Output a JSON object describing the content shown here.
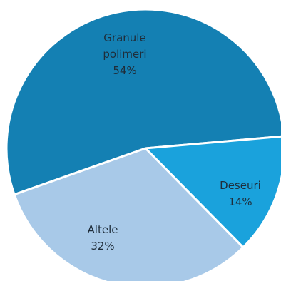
{
  "chart_data": {
    "type": "pie",
    "slices": [
      {
        "label": "Granule polimeri",
        "label_lines": [
          "Granule",
          "polimeri"
        ],
        "value": 54,
        "value_label": "54%",
        "color": "#1480b3"
      },
      {
        "label": "Deseuri",
        "label_lines": [
          "Deseuri"
        ],
        "value": 14,
        "value_label": "14%",
        "color": "#1aa2dc"
      },
      {
        "label": "Altele",
        "label_lines": [
          "Altele"
        ],
        "value": 32,
        "value_label": "32%",
        "color": "#a8c9e8"
      }
    ]
  }
}
